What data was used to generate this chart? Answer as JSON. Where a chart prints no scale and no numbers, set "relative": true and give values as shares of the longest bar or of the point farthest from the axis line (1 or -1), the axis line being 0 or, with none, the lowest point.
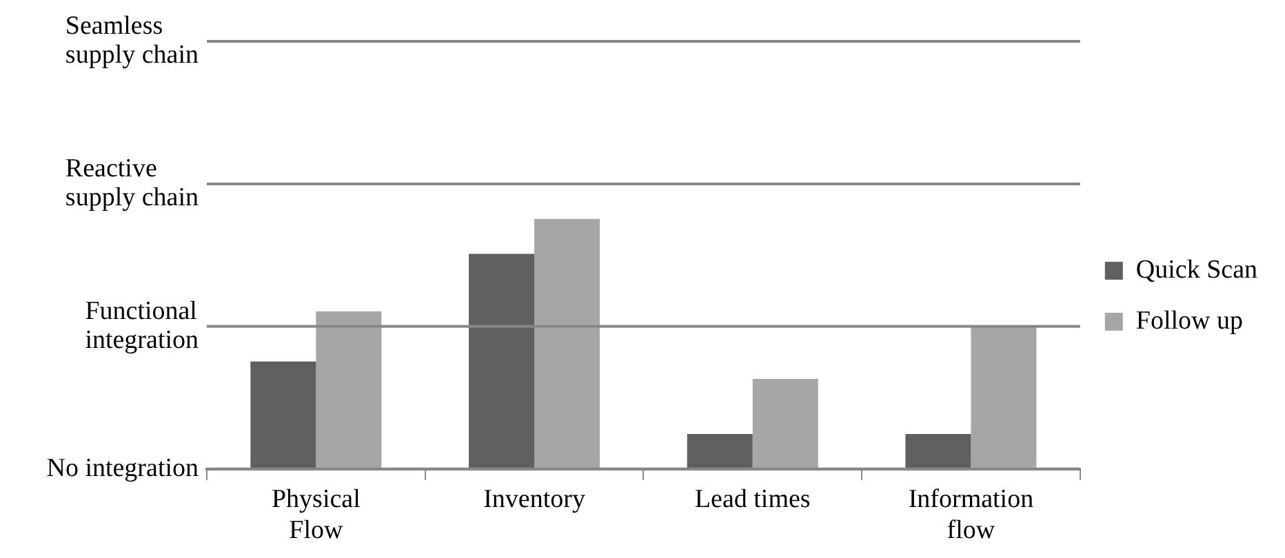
{
  "chart_data": {
    "type": "bar",
    "relative": true,
    "categories": [
      "Physical Flow",
      "Inventory",
      "Lead times",
      "Information flow"
    ],
    "series": [
      {
        "name": "Quick Scan",
        "color": "#606060",
        "values": [
          0.43,
          0.86,
          0.14,
          0.14
        ]
      },
      {
        "name": "Follow up",
        "color": "#a6a6a6",
        "values": [
          0.63,
          1,
          0.36,
          0.57
        ]
      }
    ],
    "ref_lines": [
      {
        "axis": "y",
        "value": 0,
        "label": "No integration",
        "color": "#878787"
      },
      {
        "axis": "y",
        "value": 0.57,
        "label": "Functional integration",
        "color": "#878787"
      },
      {
        "axis": "y",
        "value": 1.14,
        "label": "Reactive supply chain",
        "color": "#878787"
      },
      {
        "axis": "y",
        "value": 1.71,
        "label": "Seamless supply chain",
        "color": "#878787"
      }
    ],
    "legend": "right"
  }
}
